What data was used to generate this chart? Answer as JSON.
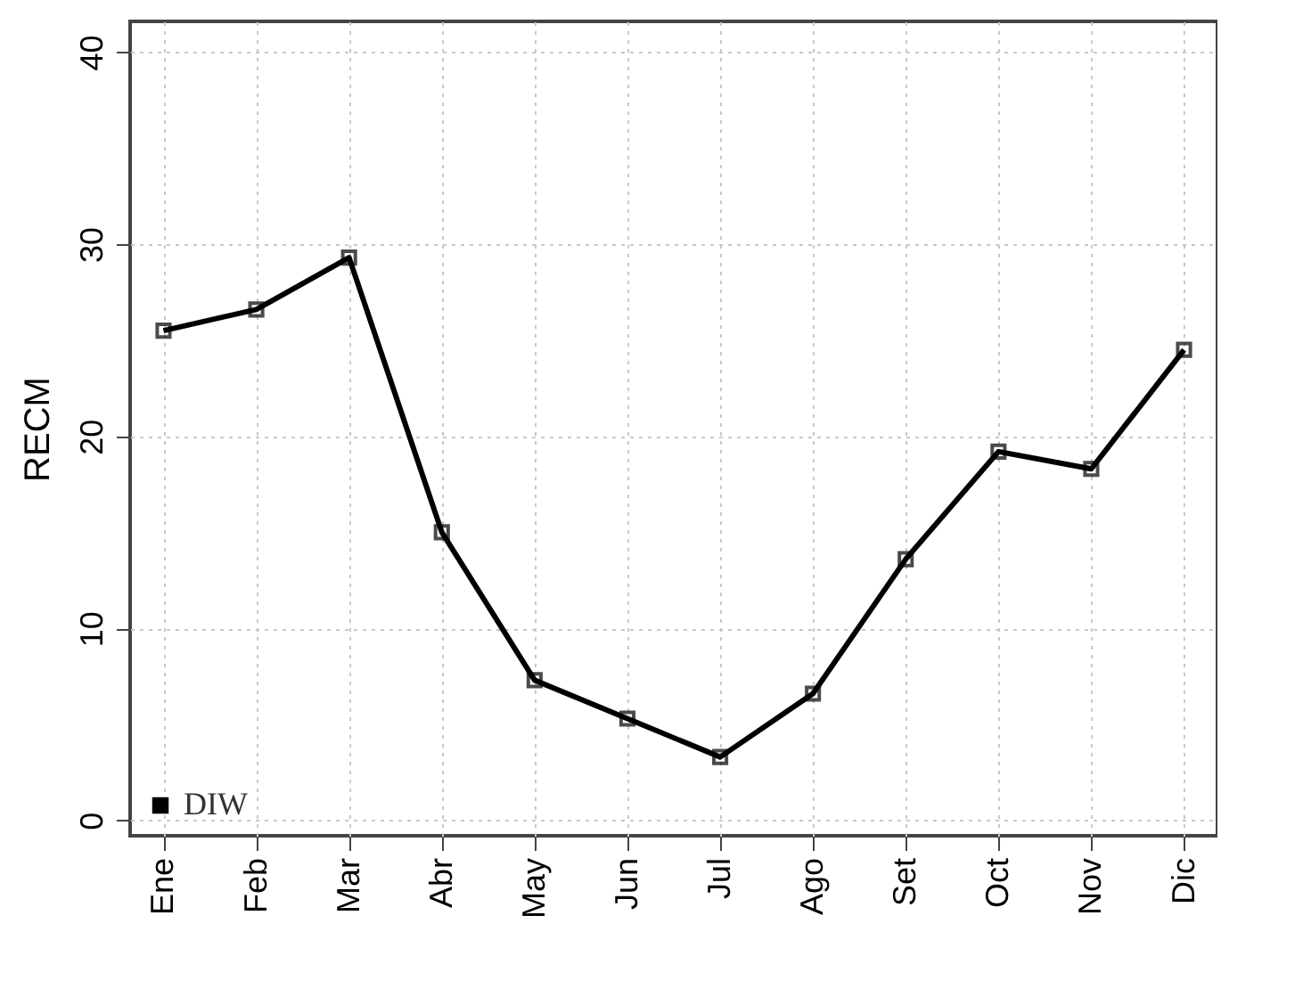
{
  "chart_data": {
    "type": "line",
    "ylabel": "RECM",
    "categories": [
      "Ene",
      "Feb",
      "Mar",
      "Abr",
      "May",
      "Jun",
      "Jul",
      "Ago",
      "Set",
      "Oct",
      "Nov",
      "Dic"
    ],
    "series": [
      {
        "name": "DIW",
        "color": "#000000",
        "values": [
          25.5,
          26.6,
          29.3,
          15.0,
          7.3,
          5.3,
          3.3,
          6.6,
          13.6,
          19.2,
          18.3,
          24.5
        ]
      }
    ],
    "ylim": [
      -0.8,
      41.6
    ],
    "yticks": [
      0,
      10,
      20,
      30,
      40
    ],
    "grid": true,
    "legend": "bottom left",
    "marker": "square",
    "line_style": "solid"
  }
}
